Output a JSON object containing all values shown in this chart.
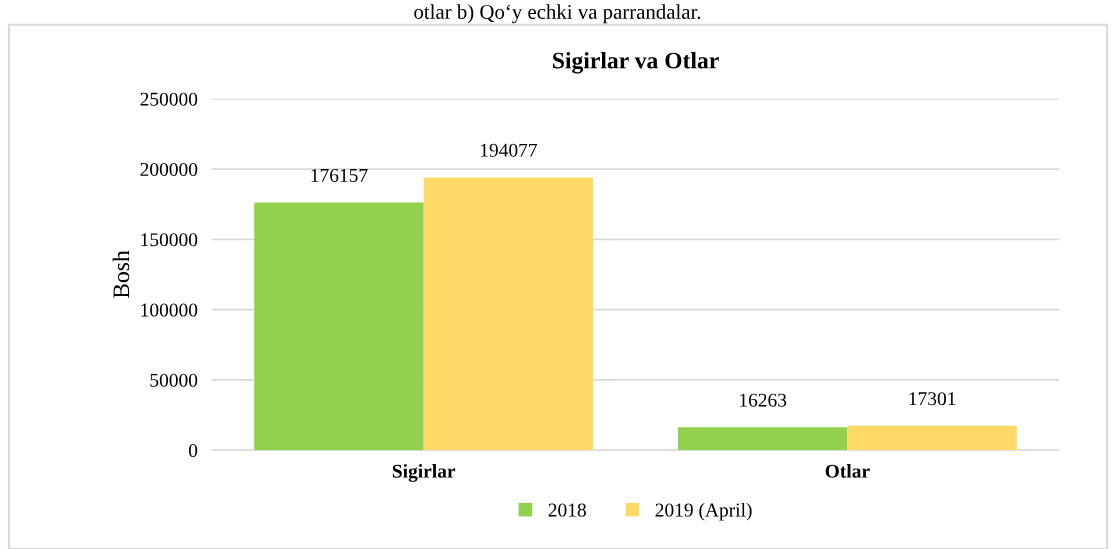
{
  "chart_data": {
    "type": "bar",
    "title": "Sigirlar va Otlar",
    "ylabel": "Bosh",
    "categories": [
      "Sigirlar",
      "Otlar"
    ],
    "series": [
      {
        "name": "2018",
        "color": "#92d050",
        "values": [
          176157,
          16263
        ]
      },
      {
        "name": "2019 (April)",
        "color": "#ffd966",
        "values": [
          194077,
          17301
        ]
      }
    ],
    "ylim": [
      0,
      250000
    ],
    "yticks": [
      0,
      50000,
      100000,
      150000,
      200000,
      250000
    ],
    "grid": "y",
    "legend": "bottom",
    "data_labels": true,
    "annotations": [
      "otlar b) Qo‘y echki va parrandalar."
    ]
  }
}
